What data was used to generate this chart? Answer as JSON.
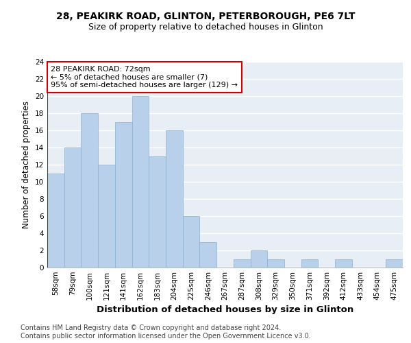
{
  "title1": "28, PEAKIRK ROAD, GLINTON, PETERBOROUGH, PE6 7LT",
  "title2": "Size of property relative to detached houses in Glinton",
  "xlabel": "Distribution of detached houses by size in Glinton",
  "ylabel": "Number of detached properties",
  "categories": [
    "58sqm",
    "79sqm",
    "100sqm",
    "121sqm",
    "141sqm",
    "162sqm",
    "183sqm",
    "204sqm",
    "225sqm",
    "246sqm",
    "267sqm",
    "287sqm",
    "308sqm",
    "329sqm",
    "350sqm",
    "371sqm",
    "392sqm",
    "412sqm",
    "433sqm",
    "454sqm",
    "475sqm"
  ],
  "values": [
    11,
    14,
    18,
    12,
    17,
    20,
    13,
    16,
    6,
    3,
    0,
    1,
    2,
    1,
    0,
    1,
    0,
    1,
    0,
    0,
    1
  ],
  "bar_color": "#b8d0ea",
  "bar_edge_color": "#8ab0d0",
  "highlight_line_color": "#cc0000",
  "annotation_text": "28 PEAKIRK ROAD: 72sqm\n← 5% of detached houses are smaller (7)\n95% of semi-detached houses are larger (129) →",
  "annotation_box_color": "#ffffff",
  "annotation_box_edge": "#cc0000",
  "ylim": [
    0,
    24
  ],
  "yticks": [
    0,
    2,
    4,
    6,
    8,
    10,
    12,
    14,
    16,
    18,
    20,
    22,
    24
  ],
  "footer": "Contains HM Land Registry data © Crown copyright and database right 2024.\nContains public sector information licensed under the Open Government Licence v3.0.",
  "bg_color": "#e8eef5",
  "grid_color": "#ffffff",
  "title1_fontsize": 10,
  "title2_fontsize": 9,
  "xlabel_fontsize": 9.5,
  "ylabel_fontsize": 8.5,
  "tick_fontsize": 7.5,
  "footer_fontsize": 7,
  "ann_fontsize": 8
}
